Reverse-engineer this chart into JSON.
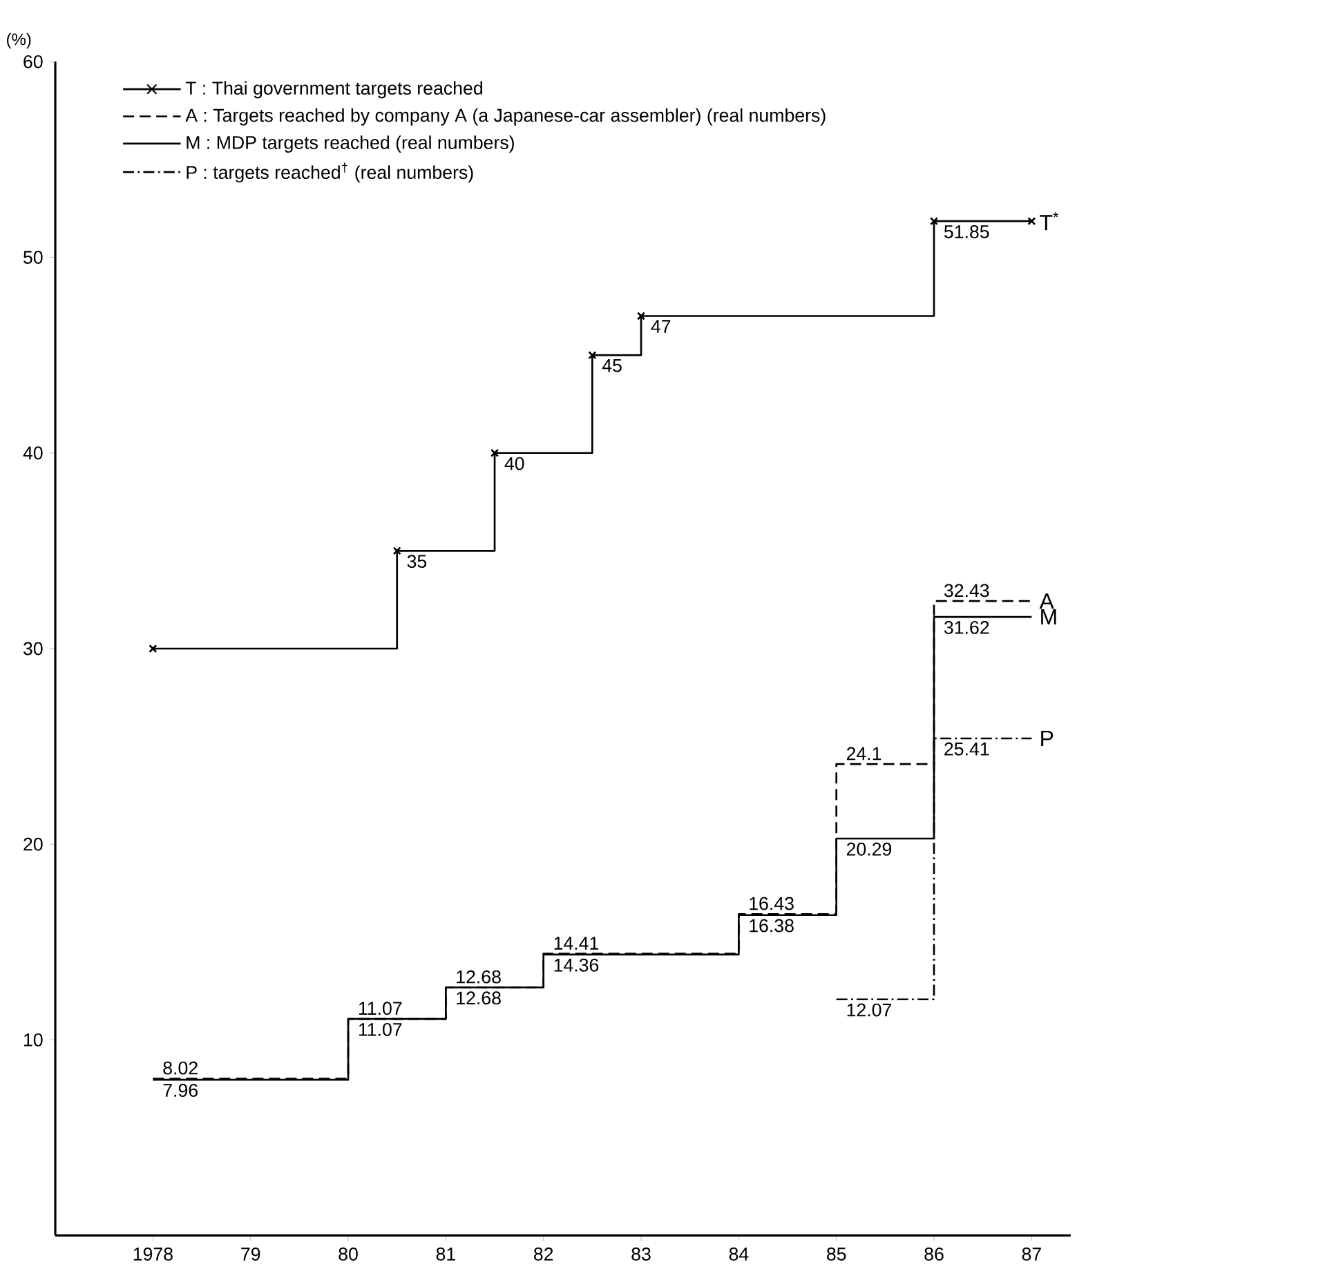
{
  "chart_data": {
    "type": "step",
    "ylabel": "(%)",
    "xlim": [
      1977,
      1987.4
    ],
    "ylim": [
      0,
      60
    ],
    "xticks": [
      1978,
      {
        "value": 1979,
        "label": "79"
      },
      {
        "value": 1980,
        "label": "80"
      },
      {
        "value": 1981,
        "label": "81"
      },
      {
        "value": 1982,
        "label": "82"
      },
      {
        "value": 1983,
        "label": "83"
      },
      {
        "value": 1984,
        "label": "84"
      },
      {
        "value": 1985,
        "label": "85"
      },
      {
        "value": 1986,
        "label": "86"
      },
      {
        "value": 1987,
        "label": "87"
      }
    ],
    "yticks": [
      10,
      20,
      30,
      40,
      50,
      60
    ],
    "legend": "top left",
    "grid": false,
    "series": [
      {
        "name": "T : Thai government targets reached",
        "color": "#000000",
        "line_style": "solid",
        "marker": "cross",
        "x": [
          1978,
          1980.5,
          1981.5,
          1982.5,
          1983,
          1986,
          1987
        ],
        "values": [
          30,
          35,
          40,
          45,
          47,
          51.85,
          51.85
        ],
        "value_labels": [
          null,
          "35",
          "40",
          "45",
          "47",
          "51.85",
          null
        ]
      },
      {
        "name": "A : Targets reached by company A (a Japanese-car assembler) (real numbers)",
        "color": "#000000",
        "line_style": "dashed",
        "x": [
          1978,
          1980,
          1981,
          1982,
          1984,
          1985,
          1986,
          1987
        ],
        "values": [
          8.02,
          11.07,
          12.68,
          14.41,
          16.43,
          24.1,
          32.43,
          32.43
        ],
        "value_labels": [
          "8.02",
          "11.07",
          "12.68",
          "14.41",
          "16.43",
          "24.1",
          "32.43",
          null
        ]
      },
      {
        "name": "M : MDP targets reached (real numbers)",
        "color": "#000000",
        "line_style": "solid",
        "x": [
          1978,
          1980,
          1981,
          1982,
          1984,
          1985,
          1986,
          1987
        ],
        "values": [
          7.96,
          11.07,
          12.68,
          14.36,
          16.38,
          20.29,
          31.62,
          31.62
        ],
        "value_labels": [
          "7.96",
          "11.07",
          "12.68",
          "14.36",
          "16.38",
          "20.29",
          "31.62",
          null
        ]
      },
      {
        "name": "P : targets reached$^{†}$ (real numbers)",
        "color": "#000000",
        "line_style": "dashdot",
        "x": [
          1985,
          1986,
          1987
        ],
        "values": [
          12.07,
          25.41,
          25.41
        ],
        "value_labels": [
          "12.07",
          "25.41",
          null
        ]
      }
    ],
    "annotations": [
      "T$^{*}$",
      "A",
      "M",
      "P"
    ]
  }
}
